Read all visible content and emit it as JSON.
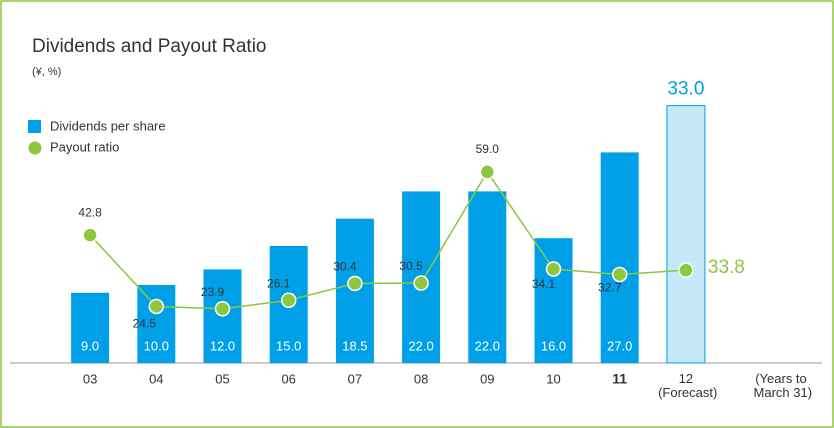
{
  "chart_data": {
    "type": "bar-line",
    "title": "Dividends and Payout Ratio",
    "subtitle": "(¥, %)",
    "x_note": "(Years to March 31)",
    "categories": [
      "03",
      "04",
      "05",
      "06",
      "07",
      "08",
      "09",
      "10",
      "11",
      "12 (Forecast)"
    ],
    "series": [
      {
        "name": "Dividends per share",
        "color": "#00a0e9",
        "forecast_color": "#c6e9f9",
        "values": [
          9.0,
          10.0,
          12.0,
          15.0,
          18.5,
          22.0,
          22.0,
          16.0,
          27.0,
          33.0
        ],
        "value_labels": [
          "9.0",
          "10.0",
          "12.0",
          "15.0",
          "18.5",
          "22.0",
          "22.0",
          "16.0",
          "27.0",
          "33.0"
        ]
      },
      {
        "name": "Payout ratio",
        "color": "#8dc63f",
        "axis": "y2",
        "values": [
          42.8,
          24.5,
          23.9,
          26.1,
          30.4,
          30.5,
          59.0,
          34.1,
          32.7,
          33.8
        ],
        "value_labels": [
          "42.8",
          "24.5",
          "23.9",
          "26.1",
          "30.4",
          "30.5",
          "59.0",
          "34.1",
          "32.7",
          "33.8"
        ]
      }
    ],
    "ylim": [
      0,
      40
    ],
    "y2lim": [
      10,
      90
    ]
  }
}
